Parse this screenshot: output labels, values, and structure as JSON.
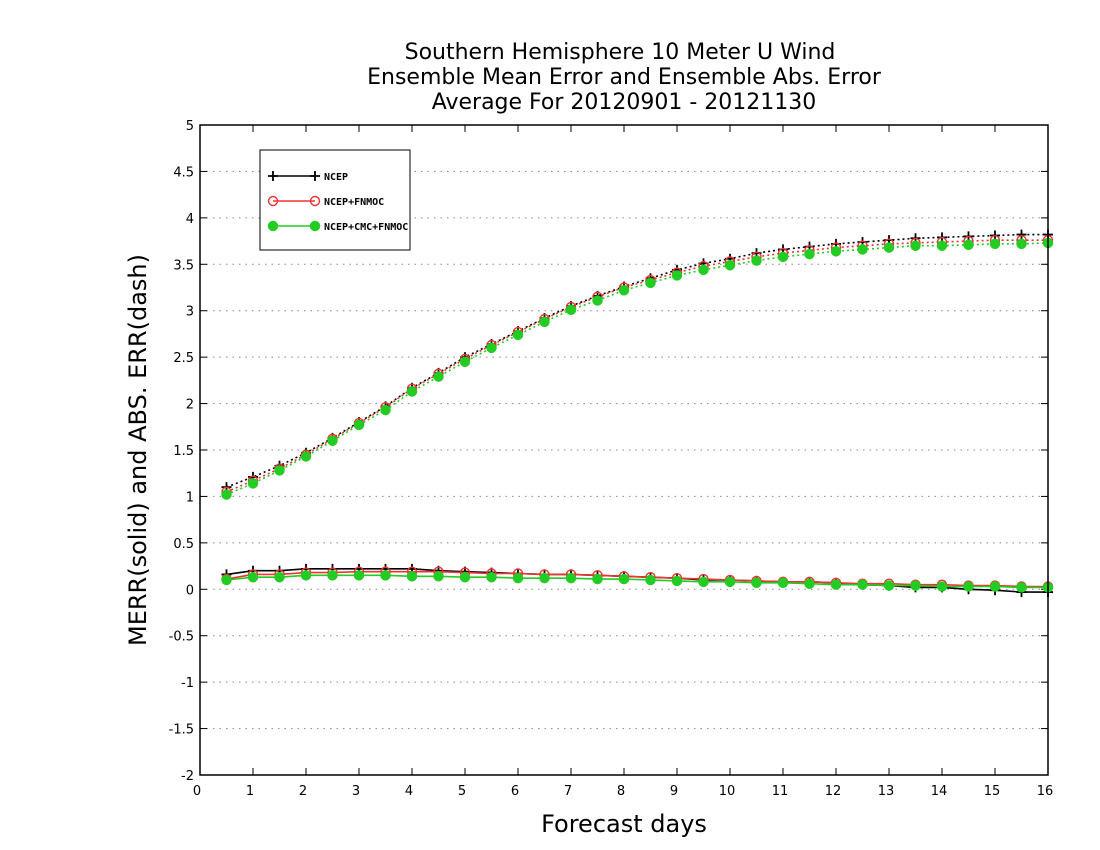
{
  "chart_data": {
    "type": "line",
    "title": [
      "Southern Hemisphere 10 Meter U Wind",
      "Ensemble Mean Error and Ensemble Abs. Error",
      "Average For 20120901 - 20121130"
    ],
    "xlabel": "Forecast days",
    "ylabel": "MERR(solid) and ABS. ERR(dash)",
    "xlim": [
      0,
      16
    ],
    "ylim": [
      -2,
      5
    ],
    "xticks": [
      "0",
      "1",
      "2",
      "3",
      "4",
      "5",
      "6",
      "7",
      "8",
      "9",
      "10",
      "11",
      "12",
      "13",
      "14",
      "15",
      "16"
    ],
    "yticks": [
      "-2",
      "-1.5",
      "-1",
      "-0.5",
      "0",
      "0.5",
      "1",
      "1.5",
      "2",
      "2.5",
      "3",
      "3.5",
      "4",
      "4.5",
      "5"
    ],
    "grid": "horizontal-dotted",
    "legend_position": "top-left",
    "x": [
      0.5,
      1,
      1.5,
      2,
      2.5,
      3,
      3.5,
      4,
      4.5,
      5,
      5.5,
      6,
      6.5,
      7,
      7.5,
      8,
      8.5,
      9,
      9.5,
      10,
      10.5,
      11,
      11.5,
      12,
      12.5,
      13,
      13.5,
      14,
      14.5,
      15,
      15.5,
      16
    ],
    "series": [
      {
        "name": "NCEP",
        "color": "#000000",
        "marker": "plus",
        "merr": [
          0.16,
          0.2,
          0.2,
          0.22,
          0.22,
          0.22,
          0.22,
          0.22,
          0.2,
          0.19,
          0.18,
          0.17,
          0.16,
          0.16,
          0.15,
          0.14,
          0.13,
          0.12,
          0.1,
          0.1,
          0.09,
          0.08,
          0.08,
          0.07,
          0.05,
          0.04,
          0.02,
          0.02,
          0.0,
          -0.01,
          -0.03,
          -0.03
        ],
        "abs_err": [
          1.1,
          1.21,
          1.33,
          1.47,
          1.63,
          1.8,
          1.97,
          2.17,
          2.33,
          2.5,
          2.64,
          2.78,
          2.92,
          3.05,
          3.16,
          3.26,
          3.35,
          3.44,
          3.51,
          3.56,
          3.62,
          3.66,
          3.69,
          3.72,
          3.74,
          3.76,
          3.78,
          3.79,
          3.8,
          3.81,
          3.82,
          3.82
        ]
      },
      {
        "name": "NCEP+FNMOC",
        "color": "#ee3333",
        "marker": "open-circle",
        "merr": [
          0.11,
          0.16,
          0.16,
          0.18,
          0.18,
          0.19,
          0.19,
          0.19,
          0.19,
          0.18,
          0.17,
          0.17,
          0.16,
          0.16,
          0.15,
          0.14,
          0.13,
          0.12,
          0.11,
          0.1,
          0.09,
          0.08,
          0.08,
          0.07,
          0.06,
          0.06,
          0.05,
          0.05,
          0.04,
          0.04,
          0.03,
          0.03
        ],
        "abs_err": [
          1.05,
          1.17,
          1.3,
          1.45,
          1.62,
          1.79,
          1.96,
          2.16,
          2.32,
          2.48,
          2.63,
          2.77,
          2.91,
          3.04,
          3.15,
          3.25,
          3.33,
          3.41,
          3.48,
          3.53,
          3.58,
          3.62,
          3.65,
          3.68,
          3.7,
          3.72,
          3.73,
          3.74,
          3.75,
          3.76,
          3.76,
          3.76
        ]
      },
      {
        "name": "NCEP+CMC+FNMOC",
        "color": "#22cc22",
        "marker": "filled-circle",
        "merr": [
          0.1,
          0.13,
          0.13,
          0.15,
          0.15,
          0.15,
          0.15,
          0.14,
          0.14,
          0.13,
          0.13,
          0.12,
          0.12,
          0.12,
          0.11,
          0.11,
          0.1,
          0.09,
          0.08,
          0.08,
          0.07,
          0.07,
          0.06,
          0.05,
          0.05,
          0.04,
          0.04,
          0.03,
          0.03,
          0.03,
          0.02,
          0.02
        ],
        "abs_err": [
          1.02,
          1.14,
          1.28,
          1.43,
          1.6,
          1.77,
          1.93,
          2.13,
          2.29,
          2.45,
          2.6,
          2.74,
          2.88,
          3.01,
          3.11,
          3.22,
          3.3,
          3.38,
          3.44,
          3.49,
          3.54,
          3.58,
          3.61,
          3.64,
          3.66,
          3.68,
          3.7,
          3.7,
          3.71,
          3.72,
          3.72,
          3.73
        ]
      }
    ]
  }
}
